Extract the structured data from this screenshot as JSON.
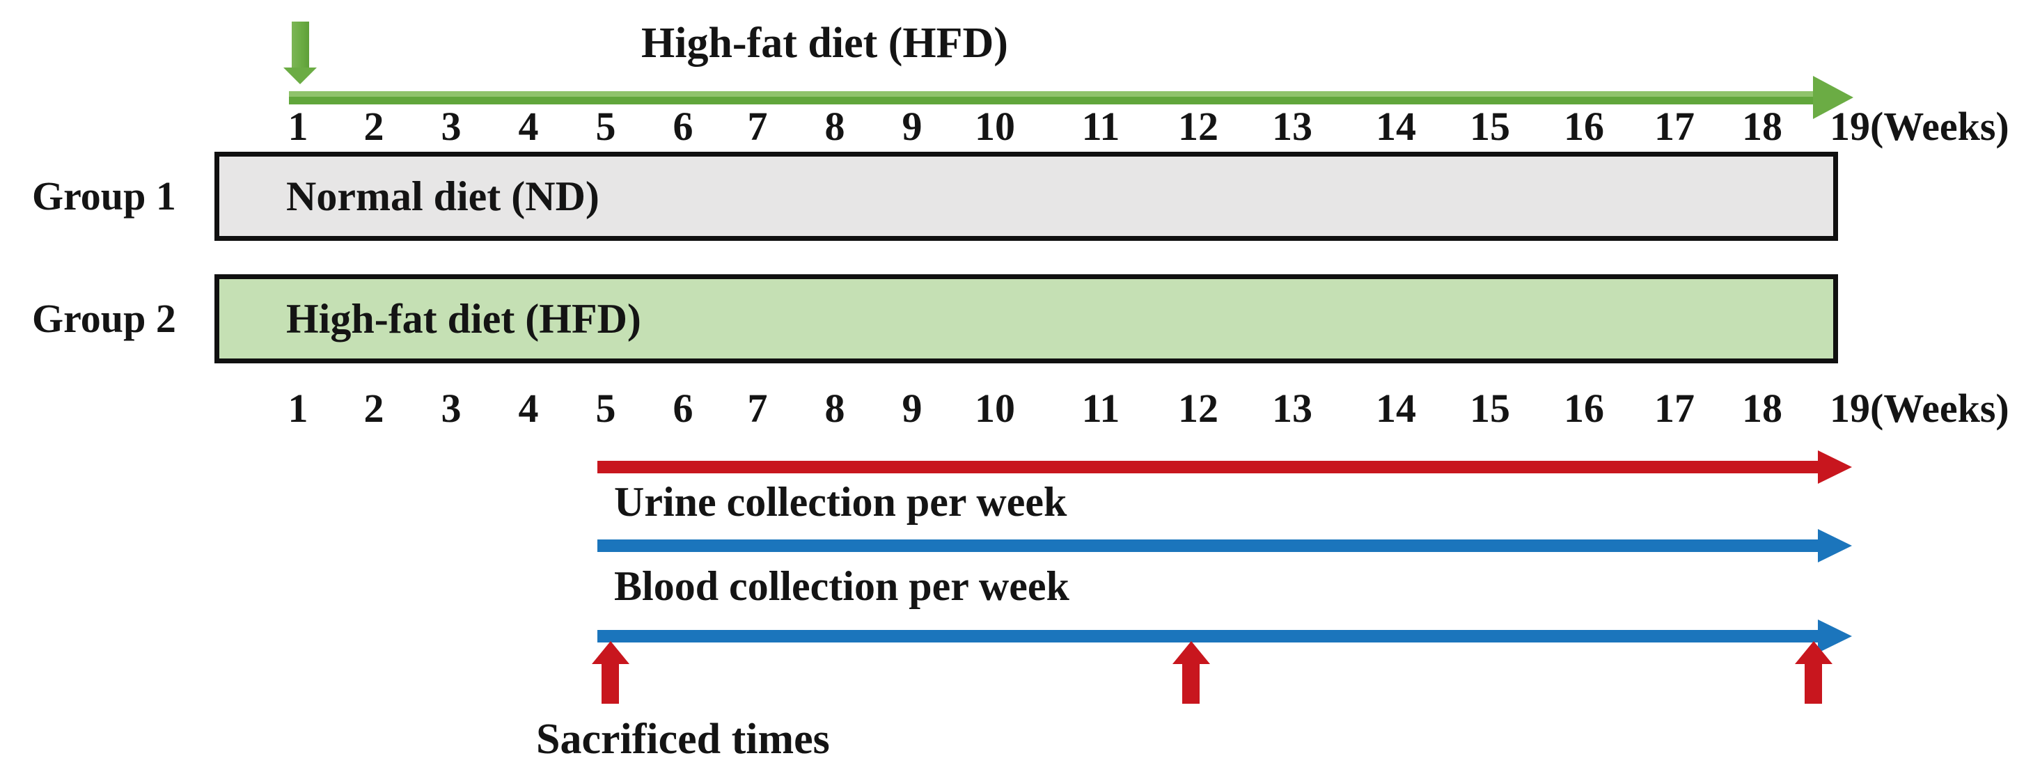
{
  "diagram": {
    "title": "High-fat diet (HFD)",
    "weeks": [
      "1",
      "2",
      "3",
      "4",
      "5",
      "6",
      "7",
      "8",
      "9",
      "10",
      "11",
      "12",
      "13",
      "14",
      "15",
      "16",
      "17",
      "18",
      "19"
    ],
    "weeks_unit": "(Weeks)",
    "groups": [
      {
        "label": "Group 1",
        "diet": "Normal diet (ND)"
      },
      {
        "label": "Group 2",
        "diet": "High-fat diet (HFD)"
      }
    ],
    "collections": [
      {
        "label": "Urine collection per week"
      },
      {
        "label": "Blood collection per week"
      }
    ],
    "sacrifice_label": "Sacrificed times",
    "hfd_start_week": "1",
    "collection_start_week": "5",
    "collection_end_week": "19",
    "sacrifice_weeks": [
      "5",
      "12",
      "19"
    ],
    "colors": {
      "green": "#6bac44",
      "green_light": "#c5e0b4",
      "gray": "#e7e6e6",
      "red": "#c8161e",
      "blue": "#1b75bc",
      "text": "#141414"
    }
  }
}
